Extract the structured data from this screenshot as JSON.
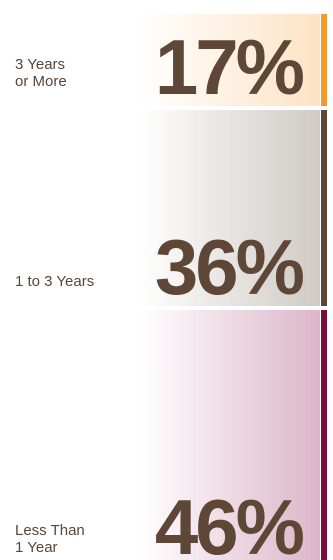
{
  "chart_data": {
    "type": "bar",
    "orientation": "stacked-vertical",
    "categories": [
      "3 Years\nor More",
      "1 to 3 Years",
      "Less Than\n1 Year"
    ],
    "values": [
      17,
      36,
      46
    ],
    "value_labels": [
      "17%",
      "36%",
      "46%"
    ],
    "colors": [
      "#f29a2e",
      "#5f4738",
      "#7a0f3c"
    ],
    "gradient_colors": [
      "#fde3c4",
      "#cfcac5",
      "#dcb5c8"
    ],
    "title": "",
    "xlabel": "",
    "ylabel": ""
  }
}
